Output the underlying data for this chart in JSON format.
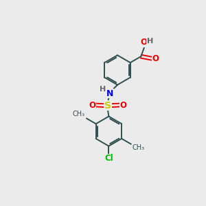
{
  "background_color": "#ebebeb",
  "bond_color": "#2f4f4f",
  "colors": {
    "N": "#0000ee",
    "O": "#ee0000",
    "S": "#cccc00",
    "Cl": "#00bb00",
    "C": "#2f4f4f",
    "H": "#666666"
  },
  "figsize": [
    3.0,
    3.0
  ],
  "dpi": 100,
  "lw": 1.4,
  "ring_r": 0.72
}
